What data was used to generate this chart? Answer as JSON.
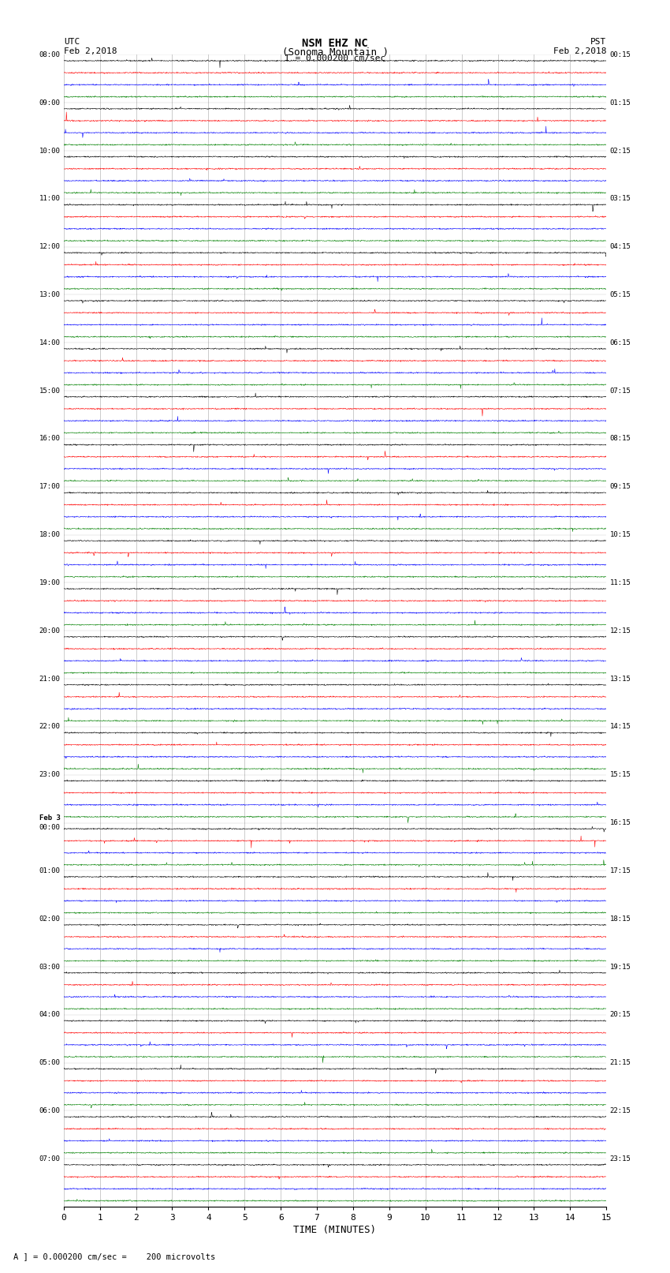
{
  "title_line1": "NSM EHZ NC",
  "title_line2": "(Sonoma Mountain )",
  "scale_label": "I = 0.000200 cm/sec",
  "left_header": "UTC",
  "left_date": "Feb 2,2018",
  "right_header": "PST",
  "right_date": "Feb 2,2018",
  "xlabel": "TIME (MINUTES)",
  "bottom_note": "A ] = 0.000200 cm/sec =    200 microvolts",
  "utc_labels": [
    "08:00",
    "09:00",
    "10:00",
    "11:00",
    "12:00",
    "13:00",
    "14:00",
    "15:00",
    "16:00",
    "17:00",
    "18:00",
    "19:00",
    "20:00",
    "21:00",
    "22:00",
    "23:00",
    "00:00",
    "01:00",
    "02:00",
    "03:00",
    "04:00",
    "05:00",
    "06:00",
    "07:00"
  ],
  "utc_has_feb3": [
    false,
    false,
    false,
    false,
    false,
    false,
    false,
    false,
    false,
    false,
    false,
    false,
    false,
    false,
    false,
    false,
    true,
    false,
    false,
    false,
    false,
    false,
    false,
    false
  ],
  "pst_labels": [
    "00:15",
    "01:15",
    "02:15",
    "03:15",
    "04:15",
    "05:15",
    "06:15",
    "07:15",
    "08:15",
    "09:15",
    "10:15",
    "11:15",
    "12:15",
    "13:15",
    "14:15",
    "15:15",
    "16:15",
    "17:15",
    "18:15",
    "19:15",
    "20:15",
    "21:15",
    "22:15",
    "23:15"
  ],
  "n_hour_blocks": 24,
  "traces_per_block": 4,
  "trace_colors": [
    "black",
    "red",
    "blue",
    "green"
  ],
  "bg_color": "white",
  "fig_width": 8.5,
  "fig_height": 16.13,
  "x_ticks": [
    0,
    1,
    2,
    3,
    4,
    5,
    6,
    7,
    8,
    9,
    10,
    11,
    12,
    13,
    14,
    15
  ],
  "x_min": 0,
  "x_max": 15,
  "noise_amplitude": 0.06,
  "spike_probability": 0.0015,
  "spike_amplitude": 0.6,
  "random_seed": 42
}
